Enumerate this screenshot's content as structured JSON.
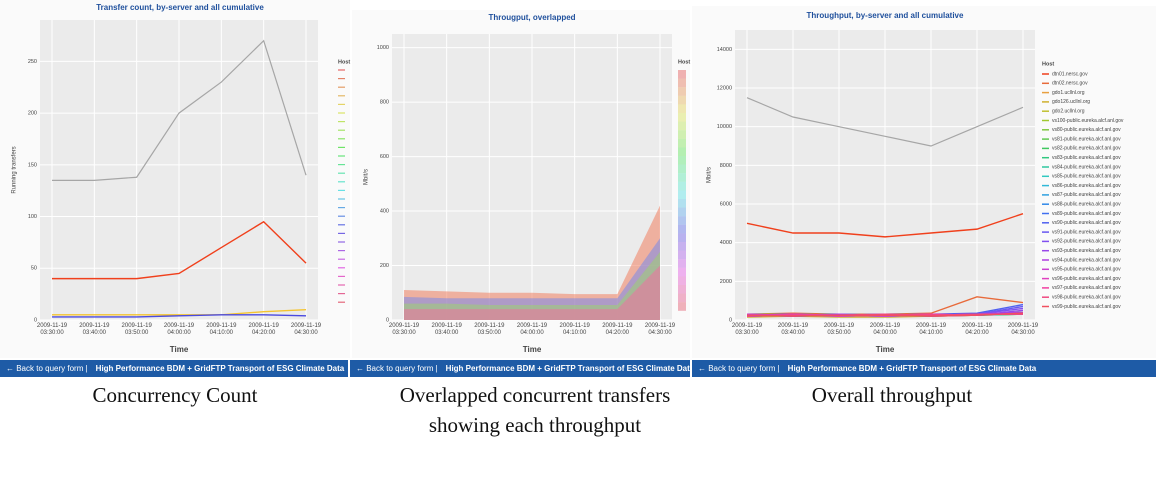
{
  "chart_data": [
    {
      "type": "line",
      "title": "Transfer count, by-server and all cumulative",
      "y_label": "Running transfers",
      "x_label": "Time",
      "legend_title": "Host",
      "x": [
        "2009-11-19 03:30:00",
        "2009-11-19 03:40:00",
        "2009-11-19 03:50:00",
        "2009-11-19 04:00:00",
        "2009-11-19 04:10:00",
        "2009-11-19 04:20:00",
        "2009-11-19 04:30:00"
      ],
      "ylim": [
        0,
        290
      ],
      "yticks": [
        0,
        50,
        100,
        150,
        200,
        250
      ],
      "grid": true,
      "series": [
        {
          "color": "#a6a6a6",
          "values": [
            135,
            135,
            138,
            200,
            230,
            270,
            140
          ]
        },
        {
          "color": "#f0401c",
          "values": [
            40,
            40,
            40,
            45,
            70,
            95,
            55
          ]
        },
        {
          "color": "#f4c430",
          "values": [
            5,
            5,
            5,
            5,
            5,
            8,
            10
          ]
        },
        {
          "color": "#4a4ae0",
          "values": [
            3,
            3,
            3,
            4,
            5,
            5,
            4
          ]
        }
      ]
    },
    {
      "type": "area",
      "title": "Througput, overlapped",
      "y_label": "Mbit/s",
      "x_label": "Time",
      "legend_title": "Host",
      "x": [
        "2009-11-19 03:30:00",
        "2009-11-19 03:40:00",
        "2009-11-19 03:50:00",
        "2009-11-19 04:00:00",
        "2009-11-19 04:10:00",
        "2009-11-19 04:20:00",
        "2009-11-19 04:30:00"
      ],
      "ylim": [
        0,
        1050
      ],
      "yticks": [
        0,
        200,
        400,
        600,
        800,
        1000
      ],
      "grid": true,
      "series": [
        {
          "color": "#f08060",
          "values": [
            110,
            105,
            100,
            100,
            95,
            95,
            420
          ]
        },
        {
          "color": "#7a8ae8",
          "values": [
            85,
            80,
            80,
            80,
            80,
            80,
            300
          ]
        },
        {
          "color": "#9ed070",
          "values": [
            60,
            60,
            55,
            55,
            55,
            55,
            250
          ]
        },
        {
          "color": "#f070a0",
          "values": [
            40,
            40,
            40,
            40,
            40,
            40,
            200
          ]
        }
      ]
    },
    {
      "type": "line",
      "title": "Throughput, by-server and all cumulative",
      "y_label": "Mbit/s",
      "x_label": "Time",
      "legend_title": "Host",
      "x": [
        "2009-11-19 03:30:00",
        "2009-11-19 03:40:00",
        "2009-11-19 03:50:00",
        "2009-11-19 04:00:00",
        "2009-11-19 04:10:00",
        "2009-11-19 04:20:00",
        "2009-11-19 04:30:00"
      ],
      "ylim": [
        0,
        15000
      ],
      "yticks": [
        0,
        2000,
        4000,
        6000,
        8000,
        10000,
        12000,
        14000
      ],
      "grid": true,
      "series": [
        {
          "color": "#a6a6a6",
          "values": [
            11500,
            10500,
            10000,
            9500,
            9000,
            10000,
            11000
          ]
        },
        {
          "name": "dtn01.nersc.gov",
          "color": "#f0401c",
          "values": [
            5000,
            4500,
            4500,
            4300,
            4500,
            4700,
            5500
          ]
        },
        {
          "name": "dtn02.nersc.gov",
          "color": "#e86a3a",
          "values": [
            300,
            350,
            300,
            300,
            350,
            1200,
            900
          ]
        },
        {
          "name": "gdo1.ucllnl.org",
          "color": "#e8a040",
          "values": [
            200,
            250,
            200,
            200,
            250,
            300,
            400
          ]
        },
        {
          "name": "gdo126.ucllnl.org",
          "color": "#d0b030",
          "values": [
            150,
            200,
            150,
            150,
            200,
            250,
            300
          ]
        },
        {
          "name": "gdo2.ucllnl.org",
          "color": "#c0c030",
          "values": [
            200,
            200,
            200,
            200,
            200,
            250,
            350
          ]
        },
        {
          "name": "vs100-public.eureka.alcf.anl.gov",
          "color": "#a0c830",
          "values": [
            300,
            300,
            250,
            250,
            300,
            300,
            400
          ]
        },
        {
          "name": "vs80-public.eureka.alcf.anl.gov",
          "color": "#80c840",
          "values": [
            250,
            300,
            250,
            250,
            300,
            300,
            350
          ]
        },
        {
          "name": "vs81-public.eureka.alcf.anl.gov",
          "color": "#60c850",
          "values": [
            200,
            250,
            200,
            250,
            250,
            300,
            300
          ]
        },
        {
          "name": "vs82-public.eureka.alcf.anl.gov",
          "color": "#40c860",
          "values": [
            300,
            250,
            250,
            200,
            250,
            250,
            300
          ]
        },
        {
          "name": "vs83-public.eureka.alcf.anl.gov",
          "color": "#30c880",
          "values": [
            250,
            250,
            300,
            250,
            200,
            300,
            350
          ]
        },
        {
          "name": "vs84-public.eureka.alcf.anl.gov",
          "color": "#30c8a0",
          "values": [
            200,
            300,
            250,
            250,
            250,
            250,
            300
          ]
        },
        {
          "name": "vs85-public.eureka.alcf.anl.gov",
          "color": "#30c8c0",
          "values": [
            250,
            200,
            250,
            300,
            250,
            300,
            400
          ]
        },
        {
          "name": "vs86-public.eureka.alcf.anl.gov",
          "color": "#30b8d8",
          "values": [
            300,
            250,
            200,
            250,
            300,
            250,
            350
          ]
        },
        {
          "name": "vs87-public.eureka.alcf.anl.gov",
          "color": "#30a0e0",
          "values": [
            250,
            300,
            250,
            200,
            250,
            300,
            300
          ]
        },
        {
          "name": "vs88-public.eureka.alcf.anl.gov",
          "color": "#3088e8",
          "values": [
            200,
            250,
            300,
            250,
            300,
            250,
            350
          ]
        },
        {
          "name": "vs89-public.eureka.alcf.anl.gov",
          "color": "#4070f0",
          "values": [
            250,
            250,
            250,
            300,
            250,
            300,
            300
          ]
        },
        {
          "name": "vs90-public.eureka.alcf.anl.gov",
          "color": "#5060f0",
          "values": [
            300,
            200,
            250,
            250,
            300,
            350,
            800
          ]
        },
        {
          "name": "vs91-public.eureka.alcf.anl.gov",
          "color": "#6858f0",
          "values": [
            200,
            250,
            250,
            200,
            250,
            300,
            700
          ]
        },
        {
          "name": "vs92-public.eureka.alcf.anl.gov",
          "color": "#8050f0",
          "values": [
            250,
            300,
            200,
            250,
            250,
            300,
            600
          ]
        },
        {
          "name": "vs93-public.eureka.alcf.anl.gov",
          "color": "#9848e8",
          "values": [
            200,
            250,
            250,
            300,
            200,
            250,
            500
          ]
        },
        {
          "name": "vs94-public.eureka.alcf.anl.gov",
          "color": "#b040e0",
          "values": [
            250,
            200,
            300,
            250,
            250,
            300,
            400
          ]
        },
        {
          "name": "vs95-public.eureka.alcf.anl.gov",
          "color": "#c840d0",
          "values": [
            300,
            250,
            250,
            250,
            300,
            250,
            350
          ]
        },
        {
          "name": "vs96-public.eureka.alcf.anl.gov",
          "color": "#e040c0",
          "values": [
            200,
            300,
            250,
            200,
            250,
            300,
            300
          ]
        },
        {
          "name": "vs97-public.eureka.alcf.anl.gov",
          "color": "#f040a0",
          "values": [
            250,
            250,
            200,
            250,
            300,
            250,
            350
          ]
        },
        {
          "name": "vs98-public.eureka.alcf.anl.gov",
          "color": "#f04880",
          "values": [
            200,
            250,
            250,
            300,
            250,
            300,
            300
          ]
        },
        {
          "name": "vs99-public.eureka.alcf.anl.gov",
          "color": "#f05060",
          "values": [
            250,
            200,
            250,
            250,
            200,
            250,
            350
          ]
        }
      ]
    }
  ],
  "footer": {
    "back": "← Back to query form |",
    "title": "High Performance BDM + GridFTP Transport of ESG Climate Data"
  },
  "captions": [
    "Concurrency Count",
    "Overlapped concurrent transfers showing each throughput",
    "Overall throughput"
  ]
}
